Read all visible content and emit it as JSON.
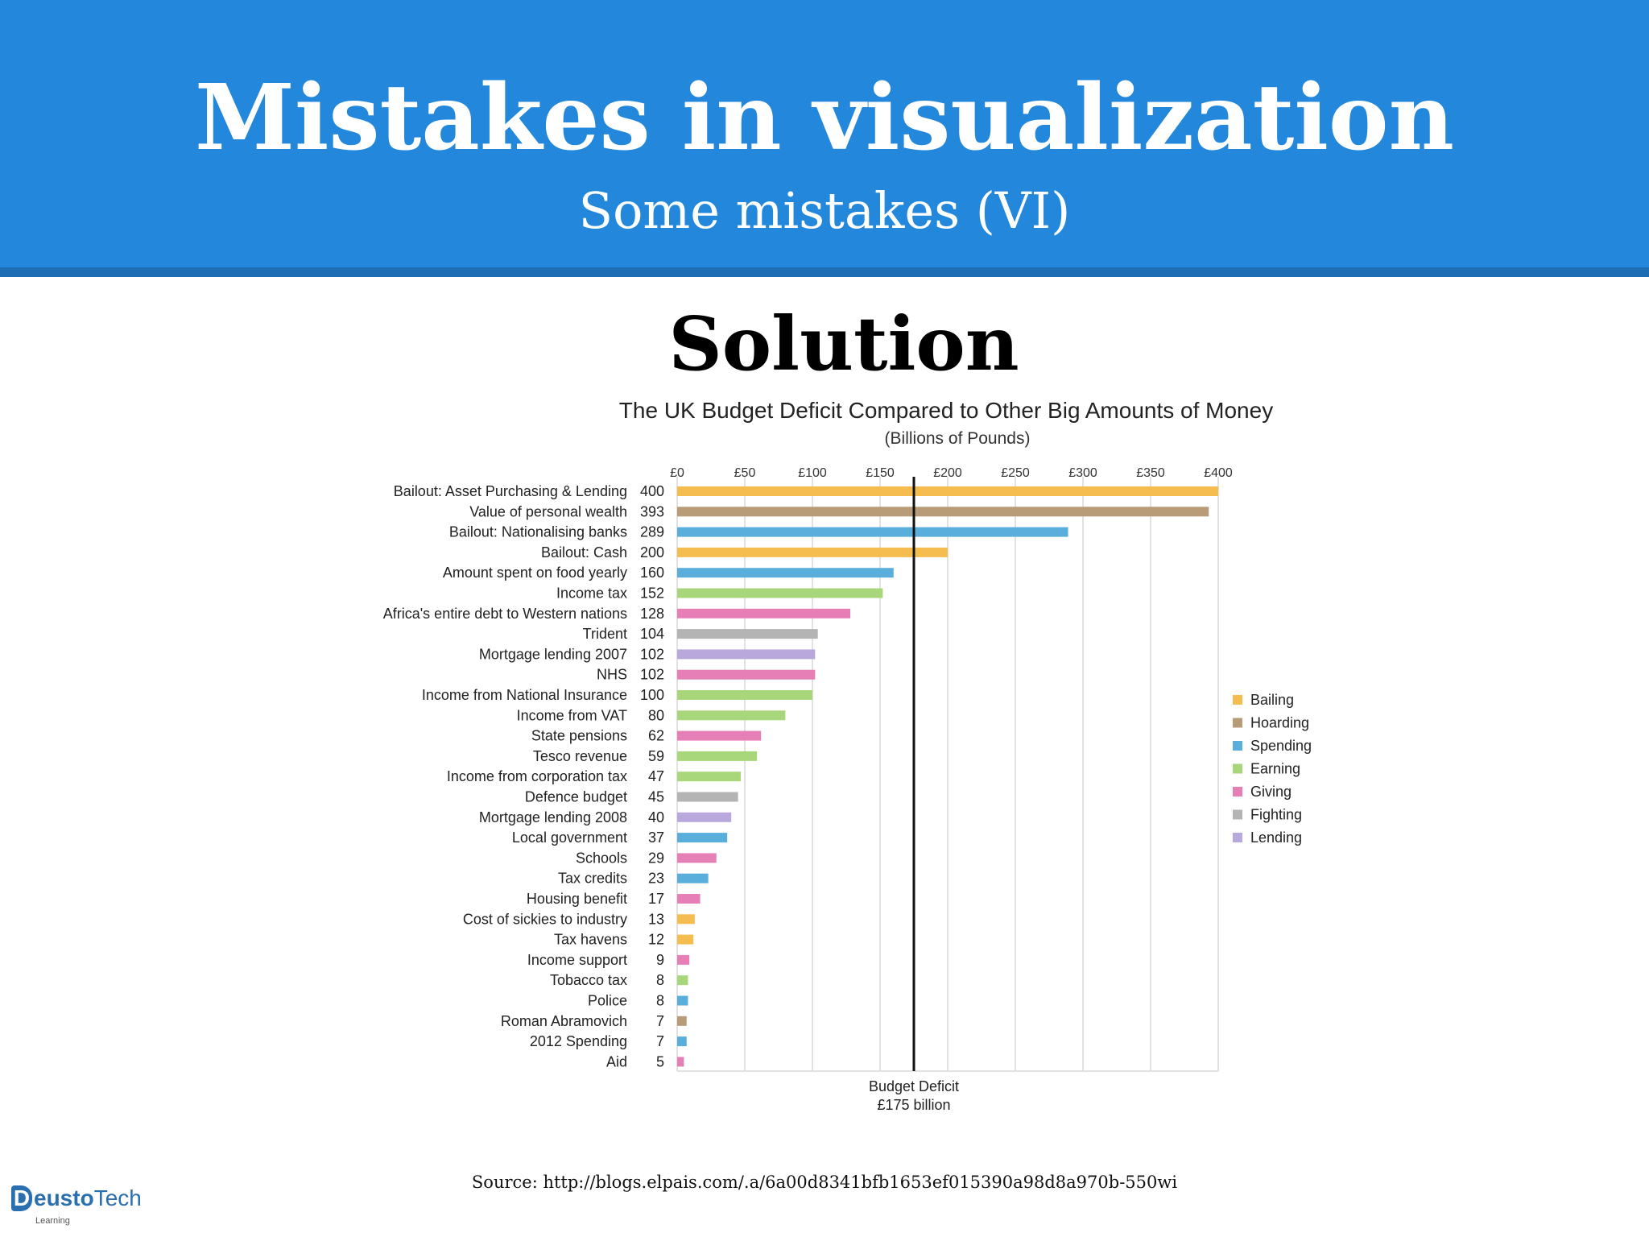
{
  "slide": {
    "title": "Mistakes in visualization",
    "subtitle": "Some mistakes (VI)",
    "heading": "Solution",
    "source": "Source: http://blogs.elpais.com/.a/6a00d8341bfb1653ef015390a98d8a970b-550wi"
  },
  "logo": {
    "name_bold": "D",
    "name_rest_a": "eusto",
    "name_rest_b": "Tech",
    "sub": "Learning"
  },
  "colors": {
    "header_bg": "#2388dc",
    "Bailing": "#f5bd4f",
    "Hoarding": "#b89c77",
    "Spending": "#5aaedc",
    "Earning": "#a8d67a",
    "Giving": "#e57fb5",
    "Fighting": "#b4b4b4",
    "Lending": "#b9a8dc"
  },
  "chart_data": {
    "type": "bar",
    "orientation": "horizontal",
    "title": "The UK Budget Deficit Compared to Other Big Amounts of Money",
    "subtitle": "(Billions of Pounds)",
    "xlim": [
      0,
      400
    ],
    "x_ticks": [
      "£0",
      "£50",
      "£100",
      "£150",
      "£200",
      "£250",
      "£300",
      "£350",
      "£400"
    ],
    "x_tick_values": [
      0,
      50,
      100,
      150,
      200,
      250,
      300,
      350,
      400
    ],
    "grid": true,
    "legend_position": "right",
    "legend": [
      "Bailing",
      "Hoarding",
      "Spending",
      "Earning",
      "Giving",
      "Fighting",
      "Lending"
    ],
    "reference_line": {
      "value": 175,
      "label_line1": "Budget Deficit",
      "label_line2": "£175 billion"
    },
    "categories": [
      "Bailout: Asset Purchasing & Lending",
      "Value of personal wealth",
      "Bailout: Nationalising banks",
      "Bailout: Cash",
      "Amount spent on food yearly",
      "Income tax",
      "Africa's entire debt to Western nations",
      "Trident",
      "Mortgage lending 2007",
      "NHS",
      "Income from National Insurance",
      "Income from VAT",
      "State pensions",
      "Tesco revenue",
      "Income from corporation tax",
      "Defence budget",
      "Mortgage lending 2008",
      "Local government",
      "Schools",
      "Tax credits",
      "Housing benefit",
      "Cost of sickies to industry",
      "Tax havens",
      "Income support",
      "Tobacco tax",
      "Police",
      "Roman Abramovich",
      "2012 Spending",
      "Aid"
    ],
    "values": [
      400,
      393,
      289,
      200,
      160,
      152,
      128,
      104,
      102,
      102,
      100,
      80,
      62,
      59,
      47,
      45,
      40,
      37,
      29,
      23,
      17,
      13,
      12,
      9,
      8,
      8,
      7,
      7,
      5
    ],
    "groups": [
      "Bailing",
      "Hoarding",
      "Spending",
      "Bailing",
      "Spending",
      "Earning",
      "Giving",
      "Fighting",
      "Lending",
      "Giving",
      "Earning",
      "Earning",
      "Giving",
      "Earning",
      "Earning",
      "Fighting",
      "Lending",
      "Spending",
      "Giving",
      "Spending",
      "Giving",
      "Bailing",
      "Bailing",
      "Giving",
      "Earning",
      "Spending",
      "Hoarding",
      "Spending",
      "Giving"
    ]
  }
}
